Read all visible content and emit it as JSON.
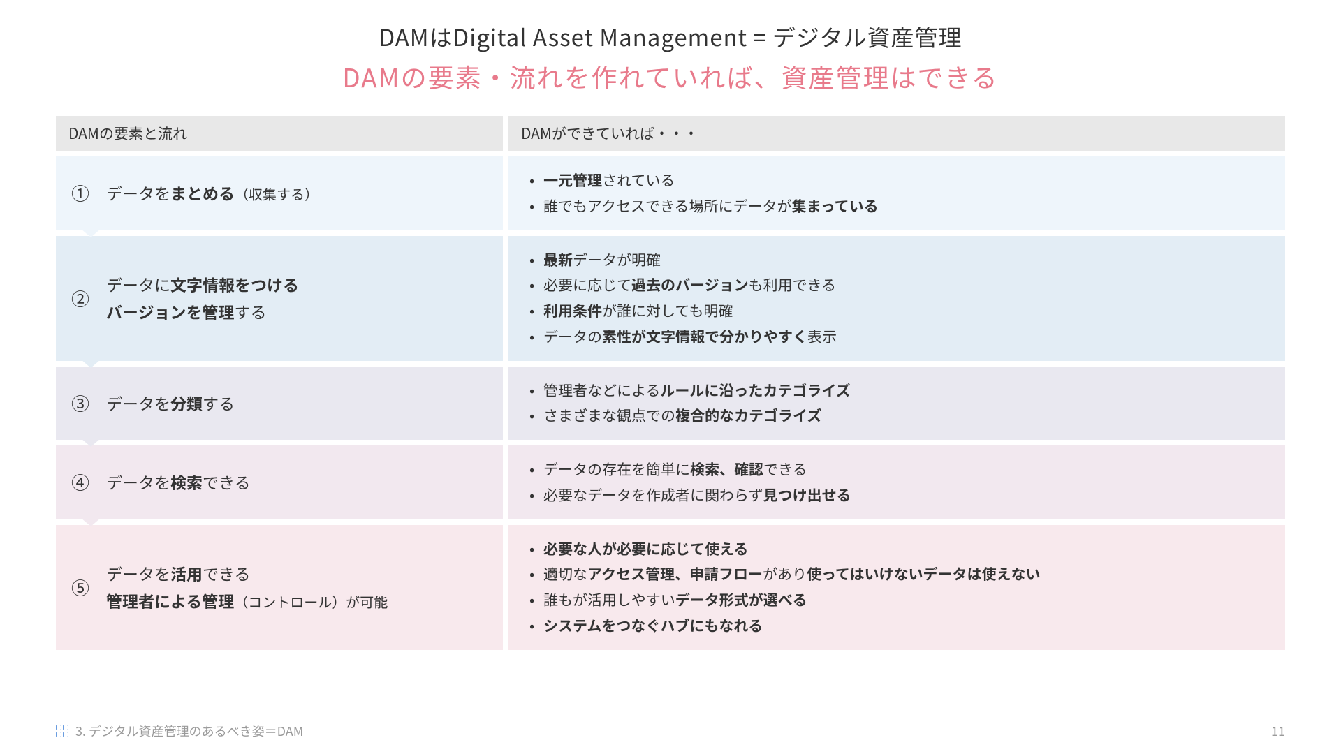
{
  "title1": "DAMはDigital Asset Management = デジタル資産管理",
  "title2": "DAMの要素・流れを作れていれば、資産管理はできる",
  "headers": {
    "left": "DAMの要素と流れ",
    "right": "DAMができていれば・・・"
  },
  "rows": [
    {
      "number": "①",
      "left_html": "データを<b>まとめる</b><span class='paren'>（収集する）</span>",
      "right_items": [
        "<b>一元管理</b>されている",
        "誰でもアクセスできる場所にデータが<b>集まっている</b>"
      ],
      "left_bg": "#eef5fb",
      "right_bg": "#eef5fb",
      "arrow": false
    },
    {
      "number": "②",
      "left_html": "データに<b>文字情報をつける</b><br><b>バージョンを管理</b>する",
      "right_items": [
        "<b>最新</b>データが明確",
        "必要に応じて<b>過去のバージョン</b>も利用できる",
        "<b>利用条件</b>が誰に対しても明確",
        "データの<b>素性が文字情報で分かりやすく</b>表示"
      ],
      "left_bg": "#e3edf5",
      "right_bg": "#e3edf5",
      "arrow": true,
      "arrow_color": "#eef5fb"
    },
    {
      "number": "③",
      "left_html": "データを<b>分類</b>する",
      "right_items": [
        "管理者などによる<b>ルールに沿ったカテゴライズ</b>",
        "さまざまな観点での<b>複合的なカテゴライズ</b>"
      ],
      "left_bg": "#e9e8f0",
      "right_bg": "#e9e8f0",
      "arrow": true,
      "arrow_color": "#e3edf5"
    },
    {
      "number": "④",
      "left_html": "データを<b>検索</b>できる",
      "right_items": [
        "データの存在を簡単に<b>検索、確認</b>できる",
        "必要なデータを作成者に関わらず<b>見つけ出せる</b>"
      ],
      "left_bg": "#f2e8ef",
      "right_bg": "#f2e8ef",
      "arrow": true,
      "arrow_color": "#e9e8f0"
    },
    {
      "number": "⑤",
      "left_html": "データを<b>活用</b>できる<br><b>管理者による管理</b><span class='paren'>（コントロール）が可能</span>",
      "right_items": [
        "<b>必要な人が必要に応じて使える</b>",
        "適切な<b>アクセス管理、申請フロー</b>があり<b>使ってはいけないデータは使えない</b>",
        "誰もが活用しやすい<b>データ形式が選べる</b>",
        "<b>システムをつなぐハブにもなれる</b>"
      ],
      "left_bg": "#f8e9ed",
      "right_bg": "#f8e9ed",
      "arrow": true,
      "arrow_color": "#f2e8ef"
    }
  ],
  "footer": {
    "section": "3.  デジタル資産管理のあるべき姿＝DAM",
    "page": "11"
  },
  "colors": {
    "title1": "#333333",
    "title2": "#e87a8b",
    "header_bg": "#e8e8e8",
    "text": "#333333",
    "footer_text": "#9a9a9a",
    "icon_border": "#6a9de0"
  }
}
